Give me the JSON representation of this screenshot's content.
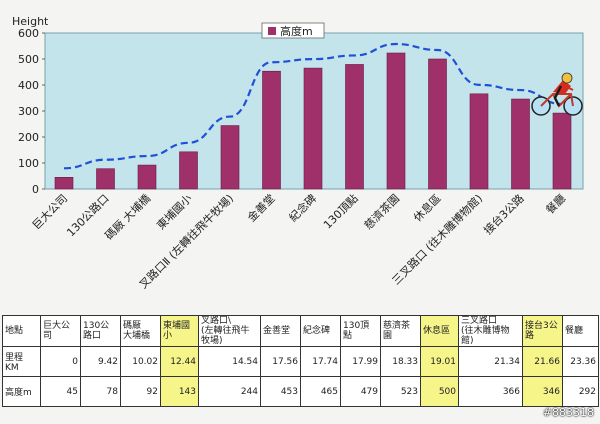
{
  "chart_data": {
    "type": "bar",
    "title": "",
    "ylabel": "Height",
    "xlabel": "",
    "ylim": [
      0,
      600
    ],
    "yticks": [
      0,
      100,
      200,
      300,
      400,
      500,
      600
    ],
    "grid": false,
    "legend": "top-center",
    "categories": [
      "巨大公司",
      "130公路口",
      "碼厰 大埔橋",
      "東埔國小",
      "叉路口Ⅱ (左轉往飛牛牧場)",
      "金善堂",
      "紀念碑",
      "130頂點",
      "慈濟茶園",
      "休息區",
      "三叉路口 (往木雕博物館)",
      "接台3公路",
      "餐廳"
    ],
    "series": [
      {
        "name": "高度m",
        "values": [
          45,
          78,
          92,
          143,
          244,
          453,
          465,
          479,
          523,
          500,
          366,
          346,
          292
        ]
      }
    ],
    "trendline": {
      "style": "dashed",
      "color": "#1f50d8"
    },
    "colors": {
      "bar": "#a0306a",
      "plot_bg": "#c2e4ea",
      "trend": "#1f50d8"
    }
  },
  "table": {
    "corner": "地點",
    "columns": [
      "巨大公司",
      "130公路口",
      "碼厰\n大埔橋",
      "東埔國小",
      "叉路口\\\n(左轉往飛牛牧場)",
      "金善堂",
      "紀念碑",
      "130頂點",
      "慈濟茶園",
      "休息區",
      "三叉路口\n(往木雕博物館)",
      "接台3公路",
      "餐廳"
    ],
    "highlight_columns": [
      3,
      9,
      11
    ],
    "rows": [
      {
        "label": "里程 KM",
        "values": [
          "0",
          "9.42",
          "10.02",
          "12.44",
          "14.54",
          "17.56",
          "17.74",
          "17.99",
          "18.33",
          "19.01",
          "21.34",
          "21.66",
          "23.36"
        ]
      },
      {
        "label": "高度m",
        "values": [
          "45",
          "78",
          "92",
          "143",
          "244",
          "453",
          "465",
          "479",
          "523",
          "500",
          "366",
          "346",
          "292"
        ]
      }
    ]
  },
  "watermark": "#883318",
  "icons": {
    "cyclist": "cyclist-icon"
  }
}
